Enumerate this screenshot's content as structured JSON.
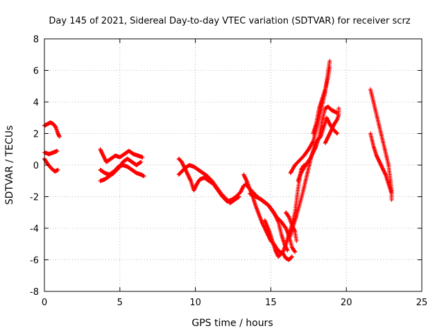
{
  "chart_data": {
    "type": "scatter",
    "title": "Day 145 of 2021, Sidereal Day-to-day VTEC variation (SDTVAR) for receiver scrz",
    "xlabel": "GPS time / hours",
    "ylabel": "SDTVAR / TECUs",
    "xlim": [
      0,
      25
    ],
    "ylim": [
      -8,
      8
    ],
    "xticks": [
      0,
      5,
      10,
      15,
      20,
      25
    ],
    "yticks": [
      -8,
      -6,
      -4,
      -2,
      0,
      2,
      4,
      6,
      8
    ],
    "grid": true,
    "marker": "+",
    "color": "#ff0000",
    "series": [
      {
        "segments": [
          [
            [
              0.0,
              2.5
            ],
            [
              0.2,
              2.6
            ],
            [
              0.4,
              2.7
            ],
            [
              0.6,
              2.6
            ],
            [
              0.75,
              2.4
            ],
            [
              0.9,
              2.0
            ],
            [
              1.0,
              1.8
            ]
          ],
          [
            [
              0.0,
              0.8
            ],
            [
              0.3,
              0.7
            ],
            [
              0.6,
              0.8
            ],
            [
              0.85,
              0.9
            ]
          ],
          [
            [
              0.0,
              0.4
            ],
            [
              0.2,
              0.1
            ],
            [
              0.45,
              -0.2
            ],
            [
              0.7,
              -0.4
            ],
            [
              0.9,
              -0.3
            ]
          ],
          [
            [
              3.7,
              1.0
            ],
            [
              3.9,
              0.6
            ],
            [
              4.1,
              0.2
            ],
            [
              4.4,
              0.4
            ],
            [
              4.7,
              0.6
            ],
            [
              5.0,
              0.5
            ],
            [
              5.3,
              0.7
            ],
            [
              5.6,
              0.9
            ],
            [
              5.9,
              0.7
            ],
            [
              6.2,
              0.6
            ],
            [
              6.5,
              0.5
            ]
          ],
          [
            [
              3.7,
              -0.3
            ],
            [
              4.0,
              -0.5
            ],
            [
              4.3,
              -0.6
            ],
            [
              4.6,
              -0.4
            ],
            [
              4.9,
              -0.1
            ],
            [
              5.2,
              0.0
            ],
            [
              5.5,
              -0.1
            ],
            [
              5.8,
              -0.3
            ],
            [
              6.1,
              -0.5
            ],
            [
              6.4,
              -0.6
            ],
            [
              6.6,
              -0.7
            ]
          ],
          [
            [
              3.7,
              -1.0
            ],
            [
              4.0,
              -0.9
            ],
            [
              4.3,
              -0.7
            ],
            [
              4.6,
              -0.5
            ],
            [
              4.9,
              -0.2
            ],
            [
              5.2,
              0.2
            ],
            [
              5.5,
              0.4
            ],
            [
              5.8,
              0.2
            ],
            [
              6.1,
              0.0
            ],
            [
              6.4,
              0.2
            ]
          ],
          [
            [
              8.9,
              0.4
            ],
            [
              9.1,
              0.2
            ],
            [
              9.3,
              -0.2
            ],
            [
              9.5,
              -0.6
            ],
            [
              9.7,
              -1.0
            ],
            [
              9.9,
              -1.6
            ],
            [
              10.1,
              -1.2
            ],
            [
              10.3,
              -0.9
            ],
            [
              10.6,
              -0.8
            ],
            [
              10.9,
              -1.0
            ],
            [
              11.2,
              -1.2
            ],
            [
              11.5,
              -1.6
            ],
            [
              11.8,
              -2.0
            ],
            [
              12.1,
              -2.3
            ],
            [
              12.4,
              -2.2
            ],
            [
              12.7,
              -2.0
            ],
            [
              13.0,
              -1.7
            ],
            [
              13.2,
              -1.3
            ]
          ],
          [
            [
              8.9,
              -0.6
            ],
            [
              9.1,
              -0.4
            ],
            [
              9.3,
              -0.2
            ],
            [
              9.6,
              0.0
            ],
            [
              9.9,
              -0.1
            ],
            [
              10.2,
              -0.3
            ],
            [
              10.5,
              -0.5
            ],
            [
              10.8,
              -0.7
            ],
            [
              11.1,
              -1.0
            ],
            [
              11.4,
              -1.4
            ],
            [
              11.7,
              -1.8
            ],
            [
              12.0,
              -2.1
            ],
            [
              12.3,
              -2.4
            ],
            [
              12.6,
              -2.2
            ],
            [
              12.9,
              -2.0
            ]
          ],
          [
            [
              13.2,
              -0.6
            ],
            [
              13.4,
              -1.0
            ],
            [
              13.6,
              -1.5
            ],
            [
              13.8,
              -2.0
            ],
            [
              14.0,
              -2.6
            ],
            [
              14.2,
              -3.1
            ],
            [
              14.4,
              -3.6
            ],
            [
              14.6,
              -4.0
            ],
            [
              14.8,
              -4.4
            ],
            [
              15.0,
              -4.8
            ],
            [
              15.2,
              -5.0
            ],
            [
              15.4,
              -5.3
            ],
            [
              15.6,
              -5.5
            ],
            [
              15.8,
              -5.6
            ],
            [
              16.0,
              -5.9
            ],
            [
              16.2,
              -6.0
            ],
            [
              16.4,
              -5.8
            ]
          ],
          [
            [
              13.6,
              -1.8
            ],
            [
              14.0,
              -2.0
            ],
            [
              14.4,
              -2.2
            ],
            [
              14.8,
              -2.5
            ],
            [
              15.1,
              -2.9
            ],
            [
              15.4,
              -3.3
            ],
            [
              15.7,
              -3.6
            ],
            [
              16.0,
              -4.0
            ],
            [
              16.2,
              -4.5
            ],
            [
              16.4,
              -5.2
            ],
            [
              16.6,
              -5.5
            ]
          ],
          [
            [
              13.3,
              -1.2
            ],
            [
              13.7,
              -1.6
            ],
            [
              14.1,
              -2.0
            ],
            [
              14.5,
              -2.3
            ],
            [
              14.9,
              -2.6
            ],
            [
              15.2,
              -3.0
            ],
            [
              15.5,
              -3.6
            ],
            [
              15.7,
              -4.4
            ],
            [
              15.9,
              -5.0
            ],
            [
              16.1,
              -5.4
            ]
          ],
          [
            [
              14.6,
              -3.5
            ],
            [
              14.9,
              -4.2
            ],
            [
              15.1,
              -4.8
            ],
            [
              15.3,
              -5.4
            ],
            [
              15.5,
              -5.8
            ],
            [
              15.8,
              -5.5
            ],
            [
              16.0,
              -5.0
            ],
            [
              16.2,
              -4.4
            ],
            [
              16.4,
              -3.8
            ],
            [
              16.6,
              -3.0
            ],
            [
              16.8,
              -1.5
            ],
            [
              17.0,
              -0.3
            ],
            [
              17.2,
              0.0
            ]
          ],
          [
            [
              16.0,
              -3.0
            ],
            [
              16.2,
              -3.3
            ],
            [
              16.4,
              -3.8
            ],
            [
              16.6,
              -4.2
            ],
            [
              16.7,
              -4.8
            ]
          ],
          [
            [
              16.3,
              -4.5
            ],
            [
              16.5,
              -3.8
            ],
            [
              16.7,
              -3.2
            ],
            [
              16.9,
              -2.5
            ],
            [
              17.1,
              -1.8
            ],
            [
              17.3,
              -1.0
            ],
            [
              17.5,
              -0.2
            ],
            [
              17.7,
              0.6
            ],
            [
              17.9,
              1.2
            ],
            [
              18.1,
              1.6
            ],
            [
              18.3,
              1.8
            ],
            [
              18.5,
              2.4
            ],
            [
              18.7,
              3.0
            ],
            [
              18.9,
              2.6
            ],
            [
              19.1,
              2.3
            ],
            [
              19.3,
              2.1
            ],
            [
              19.4,
              2.0
            ]
          ],
          [
            [
              16.8,
              -1.0
            ],
            [
              17.0,
              -0.5
            ],
            [
              17.3,
              0.0
            ],
            [
              17.6,
              0.4
            ],
            [
              17.8,
              0.8
            ],
            [
              18.0,
              1.2
            ],
            [
              18.2,
              1.8
            ],
            [
              18.4,
              2.8
            ],
            [
              18.6,
              3.6
            ],
            [
              18.8,
              3.7
            ],
            [
              19.0,
              3.5
            ],
            [
              19.2,
              3.4
            ],
            [
              19.4,
              3.3
            ]
          ],
          [
            [
              16.3,
              -0.5
            ],
            [
              16.6,
              0.0
            ],
            [
              16.9,
              0.3
            ],
            [
              17.2,
              0.6
            ],
            [
              17.5,
              1.0
            ],
            [
              17.8,
              1.5
            ],
            [
              18.0,
              2.2
            ],
            [
              18.2,
              3.0
            ],
            [
              18.4,
              3.8
            ],
            [
              18.6,
              4.6
            ],
            [
              18.7,
              5.3
            ],
            [
              18.8,
              6.0
            ],
            [
              18.9,
              6.6
            ]
          ],
          [
            [
              17.8,
              2.0
            ],
            [
              18.0,
              2.6
            ],
            [
              18.2,
              3.6
            ],
            [
              18.4,
              4.2
            ],
            [
              18.6,
              4.8
            ],
            [
              18.8,
              5.6
            ],
            [
              18.9,
              6.2
            ]
          ],
          [
            [
              18.6,
              1.4
            ],
            [
              18.8,
              1.8
            ],
            [
              19.0,
              2.2
            ],
            [
              19.2,
              2.6
            ],
            [
              19.4,
              2.9
            ],
            [
              19.5,
              3.2
            ],
            [
              19.5,
              3.6
            ]
          ],
          [
            [
              21.6,
              4.8
            ],
            [
              21.8,
              4.0
            ],
            [
              22.0,
              3.2
            ],
            [
              22.2,
              2.4
            ],
            [
              22.4,
              1.6
            ],
            [
              22.6,
              0.8
            ],
            [
              22.8,
              0.0
            ],
            [
              22.9,
              -0.8
            ],
            [
              23.0,
              -1.6
            ],
            [
              23.0,
              -2.2
            ]
          ],
          [
            [
              21.6,
              2.0
            ],
            [
              21.8,
              1.2
            ],
            [
              22.0,
              0.6
            ],
            [
              22.2,
              0.2
            ],
            [
              22.4,
              -0.2
            ],
            [
              22.6,
              -0.6
            ],
            [
              22.8,
              -1.2
            ],
            [
              23.0,
              -1.8
            ]
          ]
        ]
      }
    ]
  }
}
